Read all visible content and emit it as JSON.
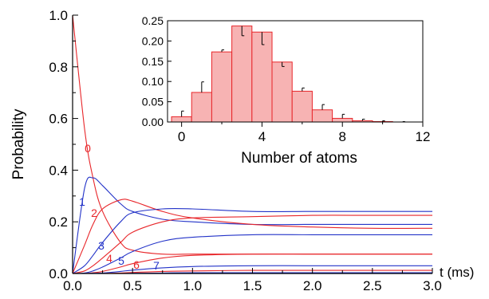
{
  "chart_data": [
    {
      "type": "line",
      "xlabel": "t (ms)",
      "ylabel": "Probability",
      "xlim": [
        0,
        3.0
      ],
      "ylim": [
        0,
        1.0
      ],
      "x_ticks": [
        "0.0",
        "0.5",
        "1.0",
        "1.5",
        "2.0",
        "2.5",
        "3.0"
      ],
      "y_ticks": [
        "0.0",
        "0.2",
        "0.4",
        "0.6",
        "0.8",
        "1.0"
      ],
      "grid": false,
      "colors": {
        "red": "#e8262a",
        "blue": "#2333c8"
      },
      "x": [
        0,
        0.1,
        0.17,
        0.25,
        0.4,
        0.5,
        0.75,
        1.0,
        1.5,
        2.0,
        2.5,
        3.0
      ],
      "series": [
        {
          "label": "0",
          "color": "red",
          "values": [
            1.0,
            0.56,
            0.37,
            0.24,
            0.12,
            0.09,
            0.075,
            0.075,
            0.075,
            0.075,
            0.075,
            0.075
          ]
        },
        {
          "label": "1",
          "color": "blue",
          "values": [
            0,
            0.33,
            0.37,
            0.34,
            0.27,
            0.24,
            0.21,
            0.2,
            0.19,
            0.19,
            0.19,
            0.19
          ]
        },
        {
          "label": "2",
          "color": "red",
          "values": [
            0,
            0.11,
            0.19,
            0.25,
            0.285,
            0.28,
            0.24,
            0.215,
            0.19,
            0.18,
            0.175,
            0.175
          ]
        },
        {
          "label": "3",
          "color": "blue",
          "values": [
            0,
            0.03,
            0.07,
            0.12,
            0.2,
            0.235,
            0.25,
            0.25,
            0.24,
            0.24,
            0.24,
            0.24
          ]
        },
        {
          "label": "4",
          "color": "red",
          "values": [
            0,
            0.01,
            0.03,
            0.06,
            0.12,
            0.16,
            0.2,
            0.215,
            0.22,
            0.225,
            0.225,
            0.225
          ]
        },
        {
          "label": "5",
          "color": "blue",
          "values": [
            0,
            0.002,
            0.01,
            0.025,
            0.06,
            0.085,
            0.125,
            0.14,
            0.15,
            0.15,
            0.15,
            0.15
          ]
        },
        {
          "label": "6",
          "color": "red",
          "values": [
            0,
            0.0,
            0.003,
            0.008,
            0.025,
            0.038,
            0.06,
            0.07,
            0.075,
            0.075,
            0.075,
            0.075
          ]
        },
        {
          "label": "7",
          "color": "blue",
          "values": [
            0,
            0.0,
            0.001,
            0.002,
            0.008,
            0.013,
            0.022,
            0.027,
            0.03,
            0.03,
            0.03,
            0.03
          ]
        },
        {
          "label": "",
          "color": "red",
          "values": [
            0,
            0.0,
            0.0,
            0.0,
            0.002,
            0.004,
            0.008,
            0.01,
            0.012,
            0.012,
            0.012,
            0.012
          ]
        },
        {
          "label": "",
          "color": "blue",
          "values": [
            0,
            0.0,
            0.0,
            0.0,
            0.0,
            0.001,
            0.002,
            0.003,
            0.003,
            0.003,
            0.003,
            0.003
          ]
        }
      ]
    },
    {
      "type": "bar",
      "xlabel": "Number of atoms",
      "ylabel": "",
      "xlim": [
        -0.7,
        12
      ],
      "ylim": [
        0,
        0.25
      ],
      "x_ticks": [
        "0",
        "4",
        "8",
        "12"
      ],
      "y_ticks": [
        "0.00",
        "0.05",
        "0.10",
        "0.15",
        "0.20",
        "0.25"
      ],
      "bar_color": "#f7b3b3",
      "edge_color": "#e8262a",
      "categories": [
        0,
        1,
        2,
        3,
        4,
        5,
        6,
        7,
        8,
        9,
        10,
        11
      ],
      "values": [
        0.013,
        0.073,
        0.173,
        0.237,
        0.222,
        0.148,
        0.076,
        0.03,
        0.009,
        0.003,
        0.001,
        0.0
      ],
      "error_bars": [
        0.027,
        0.099,
        0.178,
        0.213,
        0.191,
        0.137,
        0.084,
        0.043,
        0.019,
        0.007,
        0.003,
        0.001
      ]
    }
  ]
}
